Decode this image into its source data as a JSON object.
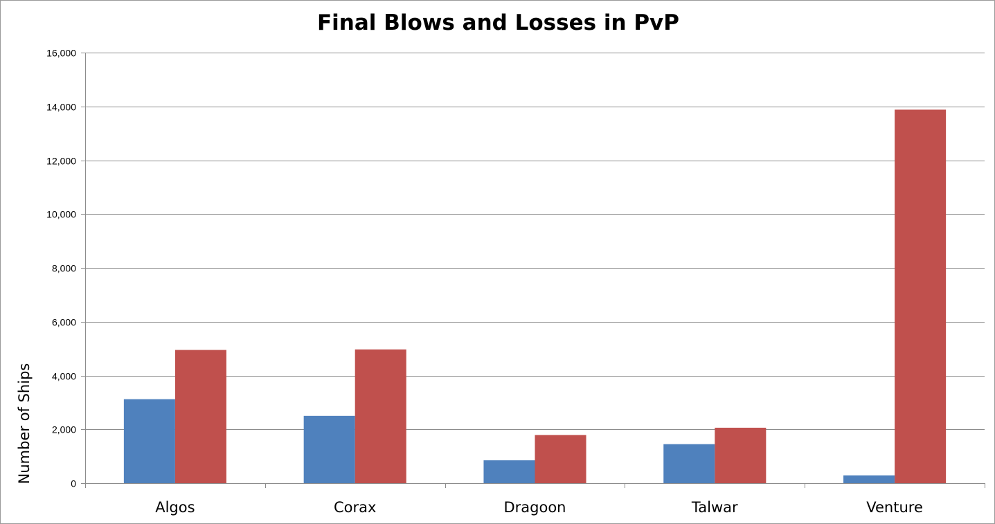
{
  "chart_data": {
    "type": "bar",
    "title": "Final Blows and Losses in PvP",
    "xlabel": "",
    "ylabel": "Number of Ships",
    "categories": [
      "Algos",
      "Corax",
      "Dragoon",
      "Talwar",
      "Venture"
    ],
    "series": [
      {
        "color": "#4f81bd",
        "values": [
          3120,
          2500,
          850,
          1450,
          290
        ]
      },
      {
        "color": "#c0504d",
        "values": [
          4950,
          4970,
          1790,
          2060,
          13880
        ]
      }
    ],
    "ylim": [
      0,
      16000
    ],
    "yticks": [
      "0",
      "2,000",
      "4,000",
      "6,000",
      "8,000",
      "10,000",
      "12,000",
      "14,000",
      "16,000"
    ],
    "grid": true,
    "legend": "none"
  }
}
